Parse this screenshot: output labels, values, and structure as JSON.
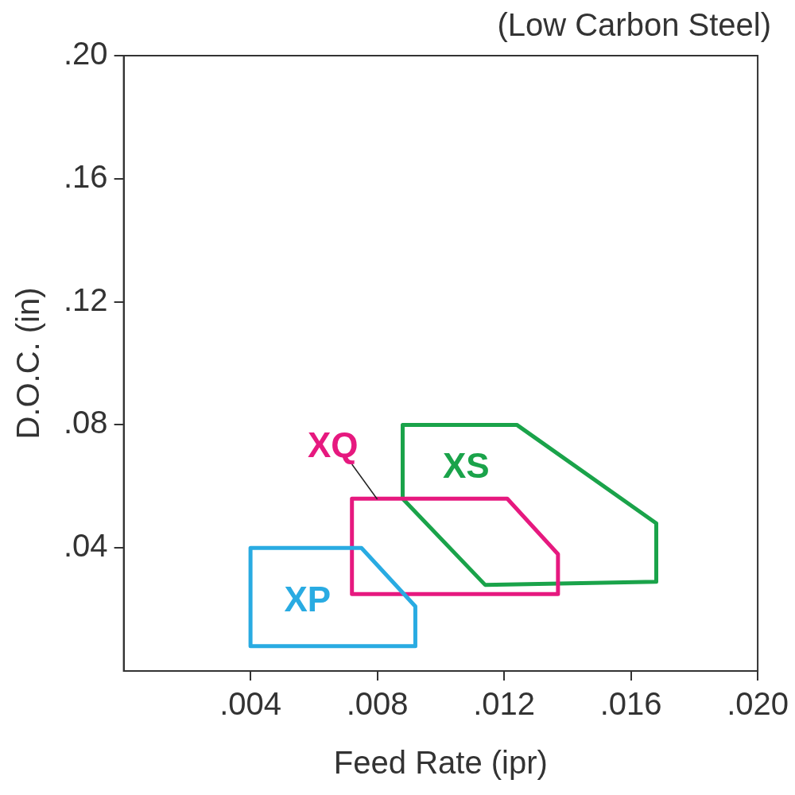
{
  "chart_data": {
    "type": "region",
    "title": "(Low Carbon Steel)",
    "x_label": "Feed Rate (ipr)",
    "y_label": "D.O.C. (in)",
    "xlim": [
      0,
      0.02
    ],
    "ylim": [
      0,
      0.2
    ],
    "xticks": [
      {
        "value": 0.004,
        "label": ".004"
      },
      {
        "value": 0.008,
        "label": ".008"
      },
      {
        "value": 0.012,
        "label": ".012"
      },
      {
        "value": 0.016,
        "label": ".016"
      },
      {
        "value": 0.02,
        "label": ".020"
      }
    ],
    "yticks": [
      {
        "value": 0.04,
        "label": ".04"
      },
      {
        "value": 0.08,
        "label": ".08"
      },
      {
        "value": 0.12,
        "label": ".12"
      },
      {
        "value": 0.16,
        "label": ".16"
      },
      {
        "value": 0.2,
        "label": ".20"
      }
    ],
    "grid": false,
    "series": [
      {
        "name": "XP",
        "color": "#29abe2",
        "x": [
          0.004,
          0.0092,
          0.0092,
          0.0075,
          0.004
        ],
        "y": [
          0.0081,
          0.0081,
          0.021,
          0.04,
          0.04
        ],
        "label_at": [
          0.0058,
          0.0225
        ]
      },
      {
        "name": "XQ",
        "color": "#e6197f",
        "x": [
          0.0072,
          0.0137,
          0.0137,
          0.0121,
          0.0072
        ],
        "y": [
          0.025,
          0.025,
          0.038,
          0.056,
          0.056
        ],
        "label_at": [
          0.0066,
          0.0726
        ],
        "leader": [
          [
            0.0072,
            0.0672
          ],
          [
            0.008,
            0.0558
          ]
        ]
      },
      {
        "name": "XS",
        "color": "#1aa34a",
        "x": [
          0.0088,
          0.0124,
          0.0168,
          0.0168,
          0.0114,
          0.0088
        ],
        "y": [
          0.08,
          0.08,
          0.048,
          0.029,
          0.028,
          0.056
        ],
        "label_at": [
          0.0108,
          0.0659
        ]
      }
    ],
    "legend": "none"
  }
}
